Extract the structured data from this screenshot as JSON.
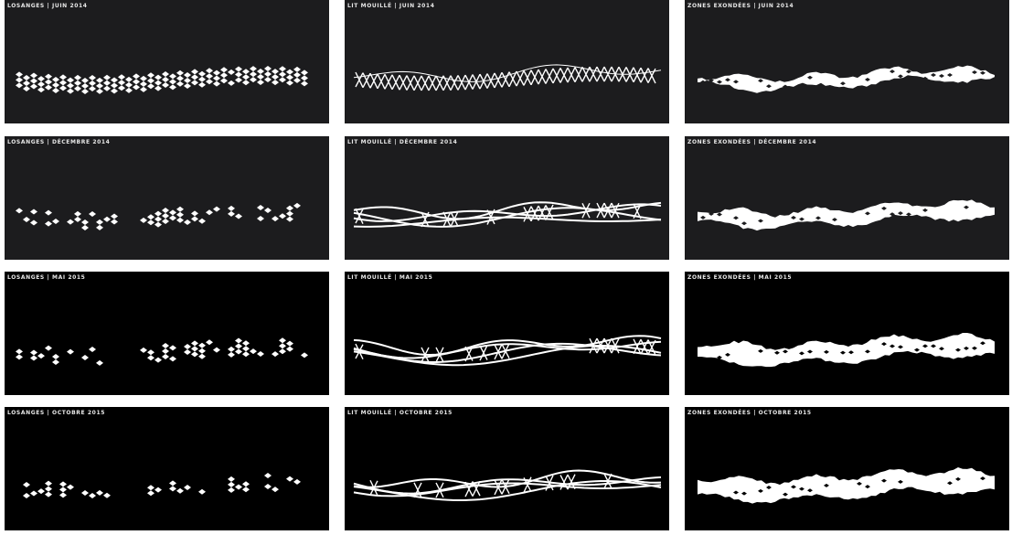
{
  "panels": [
    {
      "label": "LOSANGES | JUIN 2014"
    },
    {
      "label": "LIT MOUILLÉ | JUIN 2014"
    },
    {
      "label": "ZONES EXONDÉES | JUIN 2014"
    },
    {
      "label": "LOSANGES | DÉCEMBRE 2014"
    },
    {
      "label": "LIT MOUILLÉ | DÉCEMBRE 2014"
    },
    {
      "label": "ZONES EXONDÉES | DÉCEMBRE 2014"
    },
    {
      "label": "LOSANGES | MAI 2015"
    },
    {
      "label": "LIT MOUILLÉ | MAI 2015"
    },
    {
      "label": "ZONES EXONDÉES | MAI 2015"
    },
    {
      "label": "LOSANGES | OCTOBRE 2015"
    },
    {
      "label": "LIT MOUILLÉ | OCTOBRE 2015"
    },
    {
      "label": "ZONES EXONDÉES | OCTOBRE 2015"
    }
  ]
}
